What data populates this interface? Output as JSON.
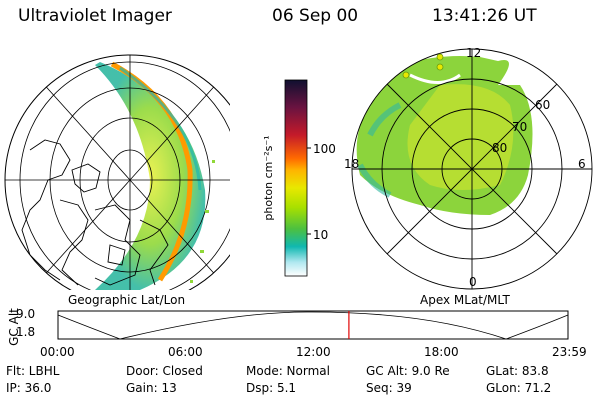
{
  "header": {
    "title": "Ultraviolet Imager",
    "date": "06 Sep 00",
    "time": "13:41:26 UT"
  },
  "geo_panel": {
    "label": "Geographic Lat/Lon"
  },
  "colorbar": {
    "unit_label": "photon cm⁻²s⁻¹",
    "tick_high": "100",
    "tick_low": "10",
    "colors": [
      "#111133",
      "#6a1340",
      "#c41a2a",
      "#ff6a00",
      "#ffb400",
      "#e8e800",
      "#a8e000",
      "#4cc040",
      "#10b8b0",
      "#b0e8f0",
      "#ffffff"
    ]
  },
  "polar_panel": {
    "label": "Apex  MLat/MLT",
    "mlt_top": "12",
    "mlt_left": "18",
    "mlt_right": "6",
    "mlt_bottom": "0",
    "lat_60": "60",
    "lat_70": "70",
    "lat_80": "80"
  },
  "altitude_plot": {
    "ylabel": "GC Alt",
    "y_high": "9.0",
    "y_low": "1.8",
    "x_ticks": [
      "00:00",
      "06:00",
      "12:00",
      "18:00",
      "23:59"
    ],
    "current_time_hours": 13.69
  },
  "status": {
    "flt": "Flt: LBHL",
    "ip": "IP: 36.0",
    "door": "Door: Closed",
    "gain": "Gain: 13",
    "mode": "Mode: Normal",
    "dsp": "Dsp:    5.1",
    "gcalt": "GC Alt: 9.0 Re",
    "seq": "Seq: 39",
    "glat": "GLat:  83.8",
    "glon": "GLon:  71.2"
  }
}
